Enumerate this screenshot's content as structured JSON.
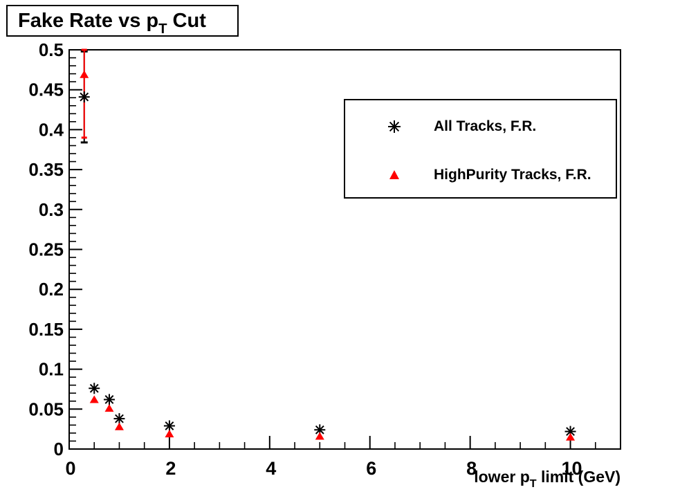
{
  "plot_title": {
    "pre": "Fake Rate vs p",
    "sub": "T",
    "post": " Cut",
    "full": "Fake Rate vs p_T Cut"
  },
  "x_axis_title": {
    "pre": "lower p",
    "sub": "T",
    "post": " limit (GeV)",
    "full": "lower p_T limit (GeV)"
  },
  "legend": {
    "entries": [
      {
        "label": "All Tracks, F.R.",
        "marker": "asterisk",
        "color": "#000000"
      },
      {
        "label": "HighPurity Tracks, F.R.",
        "marker": "triangle-up",
        "color": "#ff0000"
      }
    ]
  },
  "colors": {
    "background": "#ffffff",
    "frame": "#000000",
    "series_all_tracks": "#000000",
    "series_highpurity": "#ff0000"
  },
  "chart_data": {
    "type": "scatter",
    "title": "Fake Rate vs p_T Cut",
    "xlabel": "lower p_T limit (GeV)",
    "ylabel": "",
    "xlim": [
      0,
      11
    ],
    "ylim": [
      0,
      0.5
    ],
    "grid": false,
    "legend_position": "top-right",
    "x_major_ticks": [
      0,
      2,
      4,
      6,
      8,
      10
    ],
    "x_minor_step": 0.5,
    "y_major_ticks": [
      0,
      0.05,
      0.1,
      0.15,
      0.2,
      0.25,
      0.3,
      0.35,
      0.4,
      0.45,
      0.5
    ],
    "y_minor_step": 0.01,
    "series": [
      {
        "name": "All Tracks, F.R.",
        "marker": "asterisk",
        "color": "#000000",
        "x": [
          0.3,
          0.5,
          0.8,
          1.0,
          2.0,
          5.0,
          10.0
        ],
        "y": [
          0.441,
          0.076,
          0.062,
          0.038,
          0.029,
          0.024,
          0.022
        ],
        "error_bars": [
          {
            "x": 0.3,
            "y_low": 0.384,
            "y_high": 0.498
          }
        ]
      },
      {
        "name": "HighPurity Tracks, F.R.",
        "marker": "triangle-up",
        "color": "#ff0000",
        "x": [
          0.3,
          0.5,
          0.8,
          1.0,
          2.0,
          5.0,
          10.0
        ],
        "y": [
          0.469,
          0.062,
          0.051,
          0.028,
          0.019,
          0.016,
          0.015
        ],
        "error_bars": [
          {
            "x": 0.3,
            "y_low": 0.39,
            "y_high": 0.5
          }
        ]
      }
    ]
  }
}
